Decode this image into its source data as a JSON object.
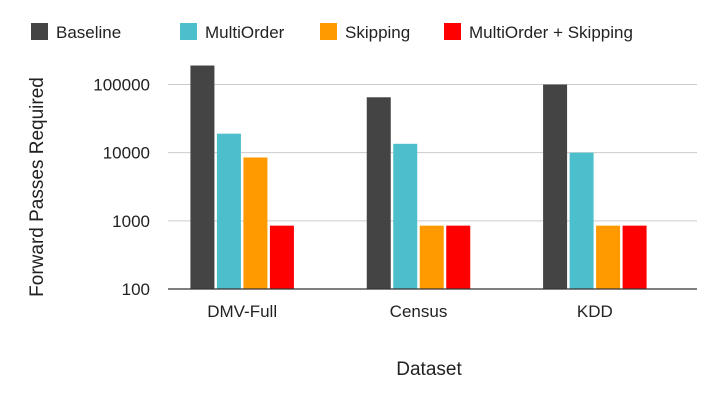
{
  "chart_data": {
    "type": "bar",
    "scale": "log",
    "categories": [
      "DMV-Full",
      "Census",
      "KDD"
    ],
    "series": [
      {
        "name": "Baseline",
        "color": "#444444",
        "values": [
          190000,
          65000,
          100000
        ]
      },
      {
        "name": "MultiOrder",
        "color": "#4bbfcc",
        "values": [
          19000,
          13500,
          10000
        ]
      },
      {
        "name": "Skipping",
        "color": "#ff9b00",
        "values": [
          8500,
          850,
          850
        ]
      },
      {
        "name": "MultiOrder + Skipping",
        "color": "#ff0000",
        "values": [
          850,
          850,
          850
        ]
      }
    ],
    "yticks": [
      "100",
      "1000",
      "10000",
      "100000"
    ],
    "ylim": [
      100,
      300000
    ],
    "xlabel": "Dataset",
    "ylabel": "Forward Passes Required",
    "grid": true,
    "legend": "top"
  }
}
